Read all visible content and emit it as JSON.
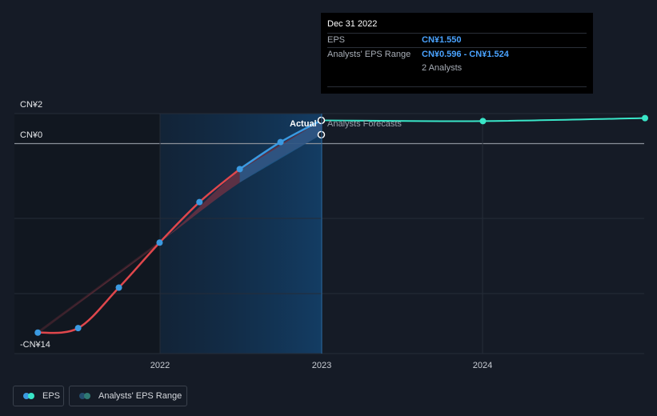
{
  "chart_data": {
    "type": "line",
    "y_tick_labels": [
      "CN¥2",
      "CN¥0",
      "-CN¥14"
    ],
    "x_tick_labels": [
      "2022",
      "2023",
      "2024"
    ],
    "ylim": [
      -14,
      2
    ],
    "series": [
      {
        "name": "EPS",
        "color": "#3b9ae1",
        "points": [
          {
            "x": "2021-03-31",
            "y": -12.6
          },
          {
            "x": "2021-06-30",
            "y": -12.3
          },
          {
            "x": "2021-09-30",
            "y": -9.6
          },
          {
            "x": "2021-12-31",
            "y": -6.6
          },
          {
            "x": "2022-03-31",
            "y": -3.9
          },
          {
            "x": "2022-06-30",
            "y": -1.7
          },
          {
            "x": "2022-09-30",
            "y": 0.1
          },
          {
            "x": "2022-12-31",
            "y": 1.55
          }
        ]
      },
      {
        "name": "Analysts' Forecasts",
        "color": "#39e6c8",
        "points": [
          {
            "x": "2022-12-31",
            "y": 1.55
          },
          {
            "x": "2023-12-31",
            "y": 1.5
          },
          {
            "x": "2024-12-31",
            "y": 1.7
          }
        ]
      }
    ],
    "analysts_range": [
      {
        "x": "2021-03-31",
        "low": -12.6,
        "high": -12.6
      },
      {
        "x": "2021-12-31",
        "low": -6.6,
        "high": -6.6
      },
      {
        "x": "2022-06-30",
        "low": -2.6,
        "high": -1.8
      },
      {
        "x": "2022-12-31",
        "low": 0.596,
        "high": 1.524
      }
    ],
    "grid": true,
    "legend_position": "bottom-left"
  },
  "labels": {
    "actual": "Actual",
    "forecasts": "Analysts Forecasts"
  },
  "tooltip": {
    "date": "Dec 31 2022",
    "eps_label": "EPS",
    "eps_value": "CN¥1.550",
    "range_label": "Analysts' EPS Range",
    "range_value": "CN¥0.596 - CN¥1.524",
    "analysts": "2 Analysts"
  },
  "legend": {
    "eps": "EPS",
    "range": "Analysts' EPS Range"
  },
  "colors": {
    "background": "#151b26",
    "eps_past": "#e0474c",
    "eps_recent": "#3b9ae1",
    "forecast": "#39e6c8",
    "highlight": "#123a5e"
  }
}
